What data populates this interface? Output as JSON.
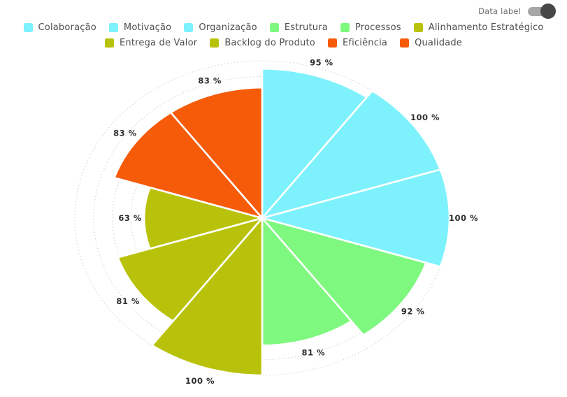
{
  "toolbar": {
    "toggle_label": "Data label",
    "toggle_state": "on",
    "toggle_track_color": "#a6a6a6",
    "toggle_knob_color": "#474747"
  },
  "chart_data": {
    "type": "pie",
    "variant": "nightingale-rose-polar",
    "title": "",
    "unit": "%",
    "label_format": "{value} %",
    "labels_visible": true,
    "start_angle_deg": 0,
    "direction": "clockwise",
    "slice_angle_deg": 36,
    "value_axis": {
      "min": 0,
      "max": 100,
      "ring_step": 10,
      "grid": "dashed-circles"
    },
    "legend_position": "top",
    "slice_border_color": "#ffffff",
    "grid_color": "#cfcfcf",
    "label_color": "#2e2e2e",
    "series": [
      {
        "name": "Colaboração",
        "value": 95,
        "color": "#7DF2FC"
      },
      {
        "name": "Motivação",
        "value": 100,
        "color": "#7DF2FC"
      },
      {
        "name": "Organização",
        "value": 100,
        "color": "#7DF2FC"
      },
      {
        "name": "Estrutura",
        "value": 92,
        "color": "#7EF87E"
      },
      {
        "name": "Processos",
        "value": 81,
        "color": "#7EF87E"
      },
      {
        "name": "Alinhamento Estratégico",
        "value": 100,
        "color": "#B9C20A"
      },
      {
        "name": "Entrega de Valor",
        "value": 81,
        "color": "#B9C20A"
      },
      {
        "name": "Backlog do Produto",
        "value": 63,
        "color": "#B9C20A"
      },
      {
        "name": "Eficiência",
        "value": 83,
        "color": "#F65B09"
      },
      {
        "name": "Qualidade",
        "value": 83,
        "color": "#F65B09"
      }
    ],
    "legend_rows": [
      [
        0,
        1,
        2,
        3,
        4,
        5
      ],
      [
        6,
        7,
        8,
        9
      ]
    ]
  }
}
